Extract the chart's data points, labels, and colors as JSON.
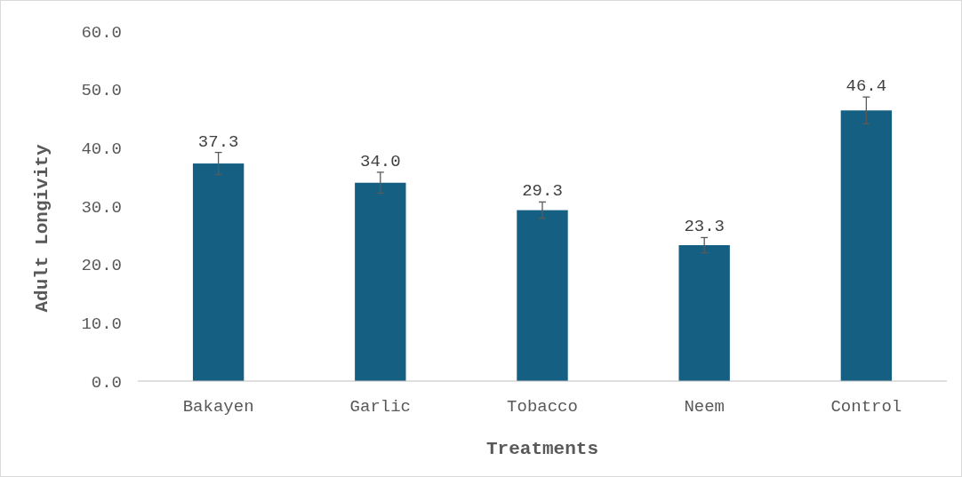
{
  "chart_data": {
    "type": "bar",
    "xlabel": "Treatments",
    "ylabel": "Adult Longivity",
    "categories": [
      "Bakayen",
      "Garlic",
      "Tobacco",
      "Neem",
      "Control"
    ],
    "values": [
      37.3,
      34.0,
      29.3,
      23.3,
      46.4
    ],
    "errors": [
      1.9,
      1.8,
      1.4,
      1.3,
      2.3
    ],
    "value_labels": [
      "37.3",
      "34.0",
      "29.3",
      "23.3",
      "46.4"
    ],
    "color": "#156082",
    "ylim": [
      0,
      60
    ],
    "yticks": [
      {
        "value": 0,
        "label": "0.0"
      },
      {
        "value": 10,
        "label": "10.0"
      },
      {
        "value": 20,
        "label": "20.0"
      },
      {
        "value": 30,
        "label": "30.0"
      },
      {
        "value": 40,
        "label": "40.0"
      },
      {
        "value": 50,
        "label": "50.0"
      },
      {
        "value": 60,
        "label": "60.0"
      }
    ],
    "grid": false
  }
}
